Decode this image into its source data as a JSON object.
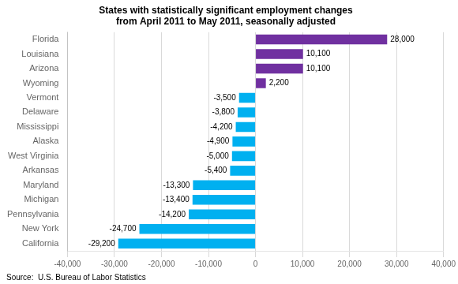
{
  "chart_data": {
    "type": "bar",
    "orientation": "horizontal",
    "title": "States with statistically significant employment changes\nfrom April 2011 to May 2011, seasonally adjusted",
    "categories": [
      "California",
      "New York",
      "Pennsylvania",
      "Michigan",
      "Maryland",
      "Arkansas",
      "West Virginia",
      "Alaska",
      "Mississippi",
      "Delaware",
      "Vermont",
      "Wyoming",
      "Arizona",
      "Louisiana",
      "Florida"
    ],
    "values": [
      -29200,
      -24700,
      -14200,
      -13400,
      -13300,
      -5400,
      -5000,
      -4900,
      -4200,
      -3800,
      -3500,
      2200,
      10100,
      10100,
      28000
    ],
    "value_labels": [
      "-29,200",
      "-24,700",
      "-14,200",
      "-13,400",
      "-13,300",
      "-5,400",
      "-5,000",
      "-4,900",
      "-4,200",
      "-3,800",
      "-3,500",
      "2,200",
      "10,100",
      "10,100",
      "28,000"
    ],
    "colors": [
      "#00B0F0",
      "#00B0F0",
      "#00B0F0",
      "#00B0F0",
      "#00B0F0",
      "#00B0F0",
      "#00B0F0",
      "#00B0F0",
      "#00B0F0",
      "#00B0F0",
      "#00B0F0",
      "#7030A0",
      "#7030A0",
      "#7030A0",
      "#7030A0"
    ],
    "data_labels": true,
    "xlim": [
      -40000,
      40000
    ],
    "xticks": [
      {
        "value": -40000,
        "label": "-40,000"
      },
      {
        "value": -30000,
        "label": "-30,000"
      },
      {
        "value": -20000,
        "label": "-20,000"
      },
      {
        "value": -10000,
        "label": "-10,000"
      },
      0,
      {
        "value": 10000,
        "label": "10,000"
      },
      {
        "value": 20000,
        "label": "20,000"
      },
      {
        "value": 30000,
        "label": "30,000"
      },
      {
        "value": 40000,
        "label": "40,000"
      }
    ],
    "grid": true,
    "annotations": [
      "Source:  U.S. Bureau of Labor Statistics"
    ]
  }
}
